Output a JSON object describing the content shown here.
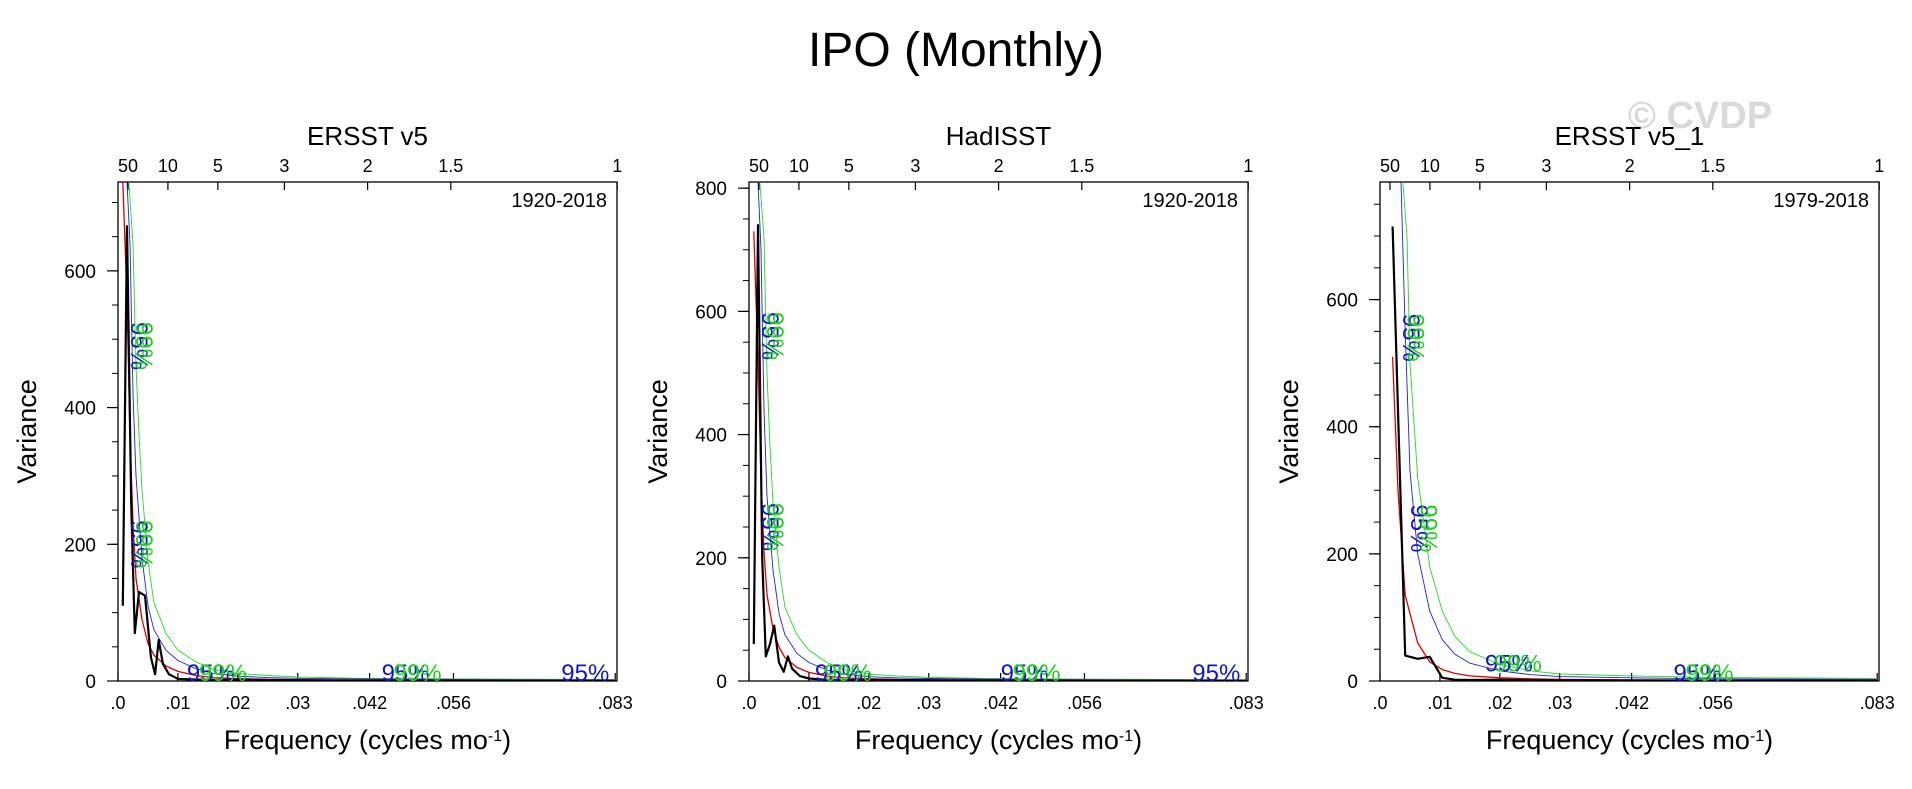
{
  "title": "IPO (Monthly)",
  "watermark": "© CVDP",
  "colors": {
    "spectrum": "#000000",
    "red_noise": "#e00000",
    "ci_blue": "#2020e0",
    "ci_green": "#22dd22",
    "ci_label_blue": "#1414c8",
    "ci_label_green": "#1ed01e",
    "watermark": "#d9d9d9"
  },
  "ci_labels": [
    "95%",
    "99%"
  ],
  "chart_data": [
    {
      "type": "line",
      "title": "ERSST v5",
      "period": "1920-2018",
      "xlabel": "Frequency (cycles mo",
      "xlabel_sup": "-1",
      "xlabel_tail": ")",
      "ylabel": "Variance",
      "xlim": [
        0,
        0.0833
      ],
      "ylim": [
        0,
        730
      ],
      "bottom_ticks": {
        "values": [
          0,
          0.01,
          0.02,
          0.03,
          0.042,
          0.056,
          0.083
        ],
        "labels": [
          ".0",
          ".01",
          ".02",
          ".03",
          ".042",
          ".056",
          ".083"
        ]
      },
      "top_ticks": {
        "values": [
          0.001667,
          0.008333,
          0.016667,
          0.027778,
          0.041667,
          0.055556,
          0.083333
        ],
        "labels": [
          "50",
          "10",
          "5",
          "3",
          "2",
          "1.5",
          "1"
        ]
      },
      "y_ticks": [
        0,
        200,
        400,
        600
      ],
      "y_minor": 50,
      "series": [
        {
          "name": "spectrum",
          "x": [
            0.0008,
            0.0015,
            0.0022,
            0.0028,
            0.0035,
            0.0045,
            0.0055,
            0.0062,
            0.0068,
            0.0075,
            0.0085,
            0.01,
            0.013,
            0.016,
            0.02,
            0.03,
            0.045,
            0.06,
            0.083
          ],
          "y": [
            110,
            665,
            260,
            70,
            130,
            125,
            35,
            10,
            60,
            25,
            10,
            3,
            2,
            1.5,
            2,
            1,
            0.5,
            0.3,
            0.2
          ]
        },
        {
          "name": "red_noise",
          "x": [
            0.0008,
            0.0015,
            0.002,
            0.0025,
            0.003,
            0.004,
            0.005,
            0.006,
            0.008,
            0.01,
            0.013,
            0.016,
            0.02,
            0.025,
            0.03,
            0.04,
            0.06,
            0.083
          ],
          "y": [
            730,
            560,
            360,
            230,
            150,
            90,
            55,
            38,
            22,
            14,
            8,
            5,
            3.5,
            2.5,
            2,
            1.5,
            1,
            0.8
          ]
        },
        {
          "name": "ci95",
          "x": [
            0.0015,
            0.002,
            0.0025,
            0.003,
            0.004,
            0.005,
            0.006,
            0.008,
            0.01,
            0.013,
            0.016,
            0.02,
            0.025,
            0.03,
            0.04,
            0.06,
            0.083
          ],
          "y": [
            730,
            640,
            420,
            300,
            180,
            110,
            75,
            45,
            30,
            18,
            11,
            7,
            5,
            4,
            3,
            2,
            1.5
          ]
        },
        {
          "name": "ci99",
          "x": [
            0.0018,
            0.0025,
            0.003,
            0.0035,
            0.004,
            0.005,
            0.006,
            0.008,
            0.01,
            0.013,
            0.016,
            0.02,
            0.025,
            0.03,
            0.04,
            0.06,
            0.083
          ],
          "y": [
            730,
            640,
            460,
            360,
            280,
            175,
            115,
            70,
            45,
            28,
            17,
            11,
            8,
            6,
            4,
            3,
            2
          ]
        }
      ],
      "ci_label_positions": [
        {
          "label": "95%",
          "kind": "rot_blue",
          "x": 0.0022,
          "y": 490
        },
        {
          "label": "99%",
          "kind": "rot_green",
          "x": 0.003,
          "y": 490
        },
        {
          "label": "95%",
          "kind": "rot_blue",
          "x": 0.0022,
          "y": 200
        },
        {
          "label": "99%",
          "kind": "rot_green",
          "x": 0.003,
          "y": 200
        },
        {
          "label": "95%",
          "kind": "flat_blue",
          "x": 0.0115,
          "y": 0
        },
        {
          "label": "99%",
          "kind": "flat_green",
          "x": 0.0135,
          "y": 0
        },
        {
          "label": "95%",
          "kind": "flat_blue",
          "x": 0.044,
          "y": 0
        },
        {
          "label": "99%",
          "kind": "flat_green",
          "x": 0.046,
          "y": 0
        },
        {
          "label": "95%",
          "kind": "flat_blue",
          "x": 0.074,
          "y": 0
        }
      ]
    },
    {
      "type": "line",
      "title": "HadISST",
      "period": "1920-2018",
      "xlabel": "Frequency (cycles mo",
      "xlabel_sup": "-1",
      "xlabel_tail": ")",
      "ylabel": "Variance",
      "xlim": [
        0,
        0.0833
      ],
      "ylim": [
        0,
        810
      ],
      "bottom_ticks": {
        "values": [
          0,
          0.01,
          0.02,
          0.03,
          0.042,
          0.056,
          0.083
        ],
        "labels": [
          ".0",
          ".01",
          ".02",
          ".03",
          ".042",
          ".056",
          ".083"
        ]
      },
      "top_ticks": {
        "values": [
          0.001667,
          0.008333,
          0.016667,
          0.027778,
          0.041667,
          0.055556,
          0.083333
        ],
        "labels": [
          "50",
          "10",
          "5",
          "3",
          "2",
          "1.5",
          "1"
        ]
      },
      "y_ticks": [
        0,
        200,
        400,
        600,
        800
      ],
      "y_minor": 50,
      "series": [
        {
          "name": "spectrum",
          "x": [
            0.0008,
            0.0015,
            0.0022,
            0.0028,
            0.0035,
            0.0042,
            0.005,
            0.0058,
            0.0065,
            0.0072,
            0.0085,
            0.01,
            0.013,
            0.016,
            0.02,
            0.03,
            0.045,
            0.06,
            0.083
          ],
          "y": [
            60,
            740,
            200,
            40,
            60,
            90,
            30,
            15,
            40,
            20,
            8,
            4,
            2,
            1.5,
            2,
            1,
            0.5,
            0.3,
            0.2
          ]
        },
        {
          "name": "red_noise",
          "x": [
            0.0008,
            0.0015,
            0.002,
            0.0025,
            0.003,
            0.004,
            0.005,
            0.006,
            0.008,
            0.01,
            0.013,
            0.016,
            0.02,
            0.025,
            0.03,
            0.04,
            0.06,
            0.083
          ],
          "y": [
            730,
            520,
            330,
            210,
            140,
            85,
            55,
            38,
            22,
            14,
            8,
            5,
            3.5,
            2.5,
            2,
            1.5,
            1,
            0.8
          ]
        },
        {
          "name": "ci95",
          "x": [
            0.0015,
            0.002,
            0.0025,
            0.003,
            0.004,
            0.005,
            0.006,
            0.008,
            0.01,
            0.013,
            0.016,
            0.02,
            0.025,
            0.03,
            0.04,
            0.06,
            0.083
          ],
          "y": [
            810,
            700,
            440,
            300,
            180,
            110,
            75,
            45,
            30,
            18,
            11,
            7,
            5,
            4,
            3,
            2,
            1.5
          ]
        },
        {
          "name": "ci99",
          "x": [
            0.0018,
            0.0025,
            0.003,
            0.0035,
            0.004,
            0.005,
            0.006,
            0.008,
            0.01,
            0.013,
            0.016,
            0.02,
            0.025,
            0.03,
            0.04,
            0.06,
            0.083
          ],
          "y": [
            810,
            720,
            500,
            380,
            290,
            185,
            120,
            75,
            50,
            30,
            18,
            11,
            8,
            6,
            4,
            3,
            2
          ]
        }
      ],
      "ci_label_positions": [
        {
          "label": "95%",
          "kind": "rot_blue",
          "x": 0.0022,
          "y": 560
        },
        {
          "label": "99%",
          "kind": "rot_green",
          "x": 0.003,
          "y": 560
        },
        {
          "label": "95%",
          "kind": "rot_blue",
          "x": 0.0022,
          "y": 250
        },
        {
          "label": "99%",
          "kind": "rot_green",
          "x": 0.003,
          "y": 250
        },
        {
          "label": "95%",
          "kind": "flat_blue",
          "x": 0.011,
          "y": 0
        },
        {
          "label": "99%",
          "kind": "flat_green",
          "x": 0.0125,
          "y": 0
        },
        {
          "label": "95%",
          "kind": "flat_blue",
          "x": 0.042,
          "y": 0
        },
        {
          "label": "99%",
          "kind": "flat_green",
          "x": 0.044,
          "y": 0
        },
        {
          "label": "95%",
          "kind": "flat_blue",
          "x": 0.074,
          "y": 0
        }
      ]
    },
    {
      "type": "line",
      "title": "ERSST v5_1",
      "period": "1979-2018",
      "xlabel": "Frequency (cycles mo",
      "xlabel_sup": "-1",
      "xlabel_tail": ")",
      "ylabel": "Variance",
      "xlim": [
        0,
        0.0833
      ],
      "ylim": [
        0,
        785
      ],
      "bottom_ticks": {
        "values": [
          0,
          0.01,
          0.02,
          0.03,
          0.042,
          0.056,
          0.083
        ],
        "labels": [
          ".0",
          ".01",
          ".02",
          ".03",
          ".042",
          ".056",
          ".083"
        ]
      },
      "top_ticks": {
        "values": [
          0.001667,
          0.008333,
          0.016667,
          0.027778,
          0.041667,
          0.055556,
          0.083333
        ],
        "labels": [
          "50",
          "10",
          "5",
          "3",
          "2",
          "1.5",
          "1"
        ]
      },
      "y_ticks": [
        0,
        200,
        400,
        600
      ],
      "y_minor": 50,
      "series": [
        {
          "name": "spectrum",
          "x": [
            0.0021,
            0.0042,
            0.0063,
            0.0083,
            0.0104,
            0.0125,
            0.015,
            0.02,
            0.03,
            0.042,
            0.056,
            0.07,
            0.083
          ],
          "y": [
            715,
            40,
            35,
            38,
            5,
            2,
            1.5,
            2,
            1,
            0.8,
            0.6,
            0.4,
            0.3
          ]
        },
        {
          "name": "red_noise",
          "x": [
            0.0021,
            0.003,
            0.0042,
            0.0063,
            0.0083,
            0.0104,
            0.0125,
            0.015,
            0.02,
            0.025,
            0.03,
            0.042,
            0.056,
            0.083
          ],
          "y": [
            510,
            300,
            135,
            60,
            30,
            18,
            12,
            8,
            5,
            3.5,
            2.5,
            1.8,
            1.3,
            1
          ]
        },
        {
          "name": "ci95",
          "x": [
            0.0035,
            0.0042,
            0.005,
            0.0063,
            0.0083,
            0.0104,
            0.0125,
            0.015,
            0.02,
            0.025,
            0.03,
            0.042,
            0.056,
            0.083
          ],
          "y": [
            785,
            550,
            330,
            200,
            110,
            65,
            42,
            28,
            16,
            10,
            7,
            5,
            3.5,
            2.5
          ]
        },
        {
          "name": "ci99",
          "x": [
            0.0038,
            0.0045,
            0.005,
            0.0063,
            0.0083,
            0.0104,
            0.0125,
            0.015,
            0.02,
            0.025,
            0.03,
            0.042,
            0.056,
            0.083
          ],
          "y": [
            785,
            700,
            500,
            320,
            180,
            110,
            70,
            46,
            26,
            16,
            11,
            8,
            5.5,
            4
          ]
        }
      ],
      "ci_label_positions": [
        {
          "label": "95%",
          "kind": "rot_blue",
          "x": 0.0038,
          "y": 540
        },
        {
          "label": "99%",
          "kind": "rot_green",
          "x": 0.0046,
          "y": 540
        },
        {
          "label": "95%",
          "kind": "rot_blue",
          "x": 0.0052,
          "y": 240
        },
        {
          "label": "99%",
          "kind": "rot_green",
          "x": 0.0068,
          "y": 240
        },
        {
          "label": "95%",
          "kind": "flat_blue",
          "x": 0.0175,
          "y": 15
        },
        {
          "label": "99%",
          "kind": "flat_green",
          "x": 0.019,
          "y": 15
        },
        {
          "label": "95%",
          "kind": "flat_blue",
          "x": 0.049,
          "y": 0
        },
        {
          "label": "99%",
          "kind": "flat_green",
          "x": 0.051,
          "y": 0
        }
      ]
    }
  ]
}
